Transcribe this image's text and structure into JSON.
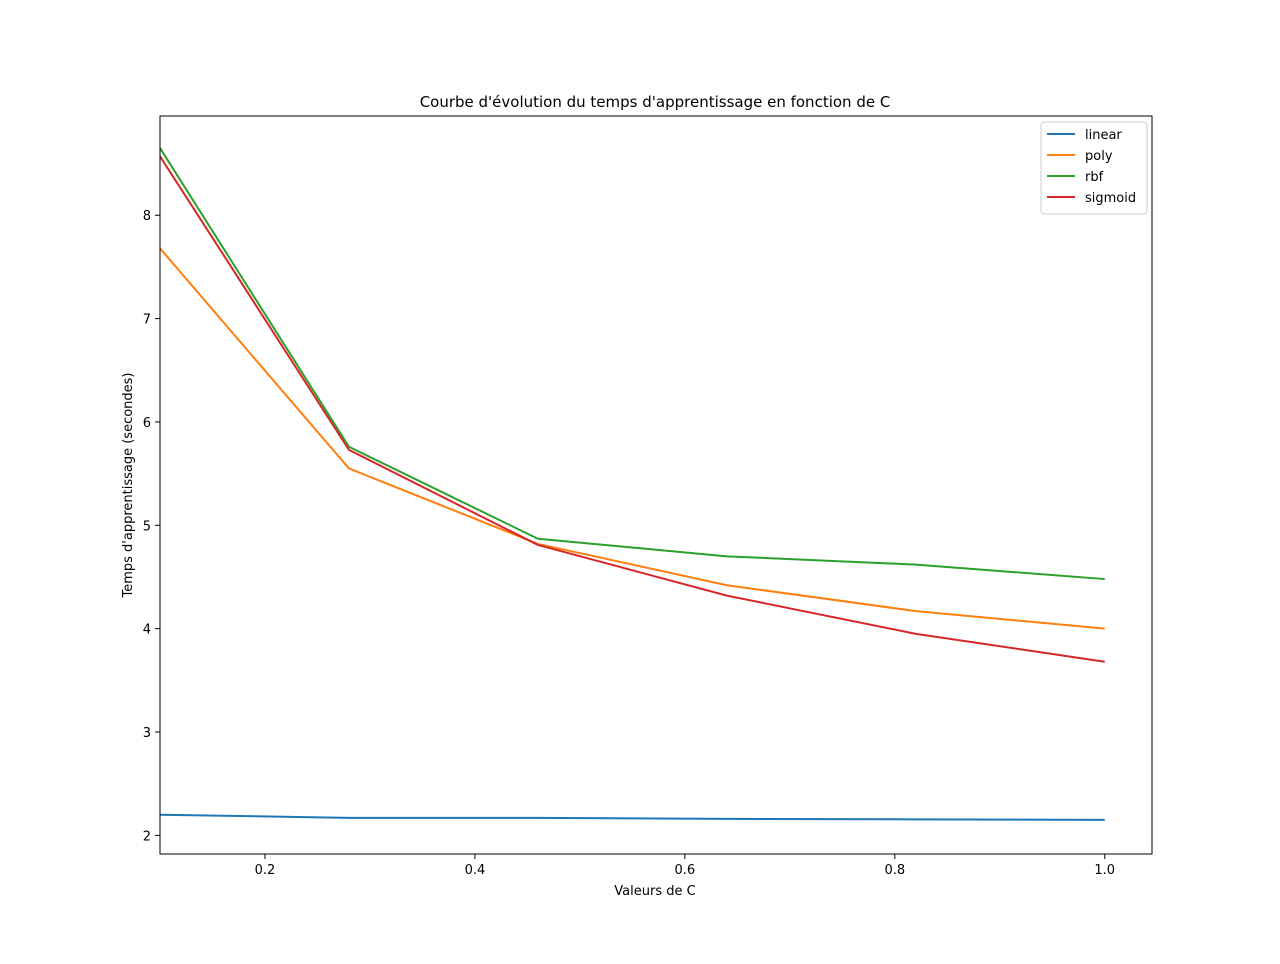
{
  "chart_data": {
    "type": "line",
    "title": "Courbe d'évolution du temps d'apprentissage en fonction de C",
    "xlabel": "Valeurs de C",
    "ylabel": "Temps d'apprentissage (secondes)",
    "x": [
      0.1,
      0.28,
      0.46,
      0.64,
      0.82,
      1.0
    ],
    "xlim": [
      0.1,
      1.045
    ],
    "ylim": [
      1.82,
      8.96
    ],
    "xticks": [
      "0.2",
      "0.4",
      "0.6",
      "0.8",
      "1.0"
    ],
    "xtick_values": [
      0.2,
      0.4,
      0.6,
      0.8,
      1.0
    ],
    "yticks": [
      "2",
      "3",
      "4",
      "5",
      "6",
      "7",
      "8"
    ],
    "ytick_values": [
      2,
      3,
      4,
      5,
      6,
      7,
      8
    ],
    "grid": false,
    "legend_position": "top-right",
    "series": [
      {
        "name": "linear",
        "color": "#1f77b4",
        "values": [
          2.2,
          2.17,
          2.17,
          2.16,
          2.155,
          2.15
        ]
      },
      {
        "name": "poly",
        "color": "#ff7f0e",
        "values": [
          7.68,
          5.55,
          4.82,
          4.42,
          4.17,
          4.0
        ]
      },
      {
        "name": "rbf",
        "color": "#2ca02c",
        "values": [
          8.65,
          5.76,
          4.87,
          4.7,
          4.62,
          4.48
        ]
      },
      {
        "name": "sigmoid",
        "color": "#d62728",
        "values": [
          8.57,
          5.73,
          4.81,
          4.32,
          3.95,
          3.68
        ]
      }
    ]
  }
}
